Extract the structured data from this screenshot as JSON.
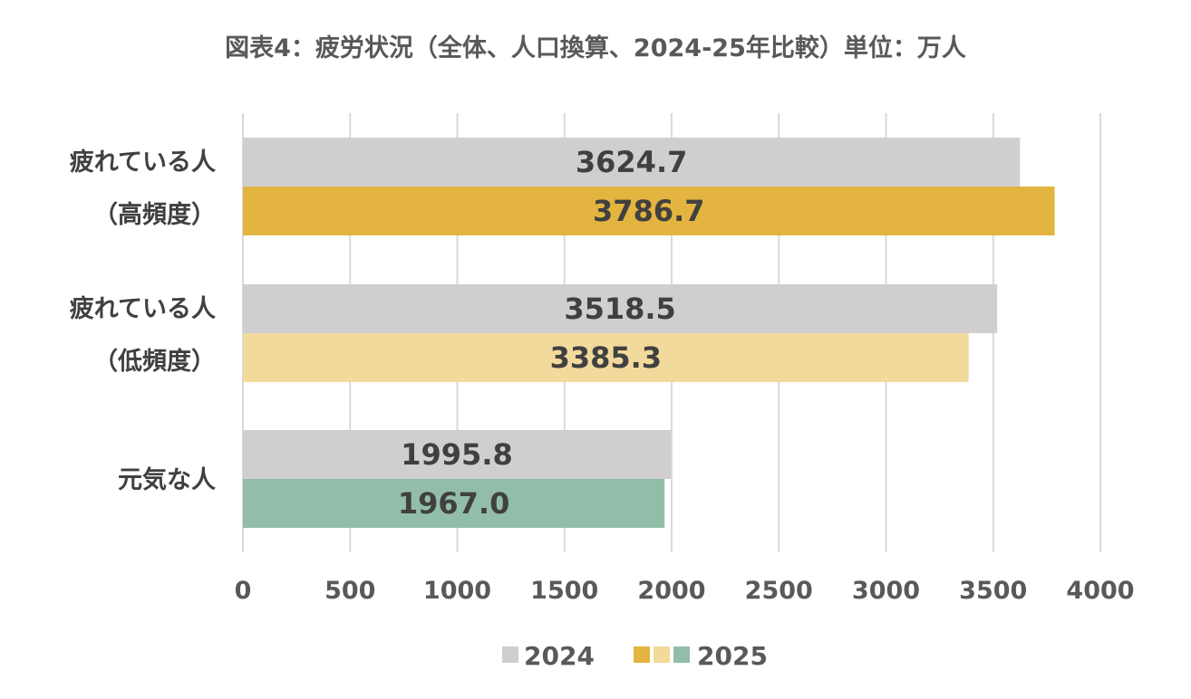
{
  "chart_data": {
    "type": "bar",
    "orientation": "horizontal",
    "title": "図表4：疲労状況（全体、人口換算、2024-25年比較）単位：万人",
    "categories": [
      {
        "line1": "疲れている人",
        "line2": "（高頻度）"
      },
      {
        "line1": "疲れている人",
        "line2": "（低頻度）"
      },
      {
        "line1": "元気な人",
        "line2": ""
      }
    ],
    "series": [
      {
        "name": "2024",
        "values": [
          3624.7,
          3518.5,
          1995.8
        ],
        "labels": [
          "3624.7",
          "3518.5",
          "1995.8"
        ],
        "colors": [
          "#d0cecf",
          "#d0cecf",
          "#d0cecf"
        ]
      },
      {
        "name": "2025",
        "values": [
          3786.7,
          3385.3,
          1967.0
        ],
        "labels": [
          "3786.7",
          "3385.3",
          "1967.0"
        ],
        "colors": [
          "#e3b43f",
          "#f2d99c",
          "#92bea9"
        ]
      }
    ],
    "xlim": [
      0,
      4000
    ],
    "ticks": [
      "0",
      "500",
      "1000",
      "1500",
      "2000",
      "2500",
      "3000",
      "3500",
      "4000"
    ],
    "grid": true,
    "legend": {
      "position": "bottom",
      "entries": [
        {
          "label": "2024",
          "swatches": [
            "#d0cecf"
          ]
        },
        {
          "label": "2025",
          "swatches": [
            "#e3b43f",
            "#f2d99c",
            "#92bea9"
          ]
        }
      ]
    }
  }
}
